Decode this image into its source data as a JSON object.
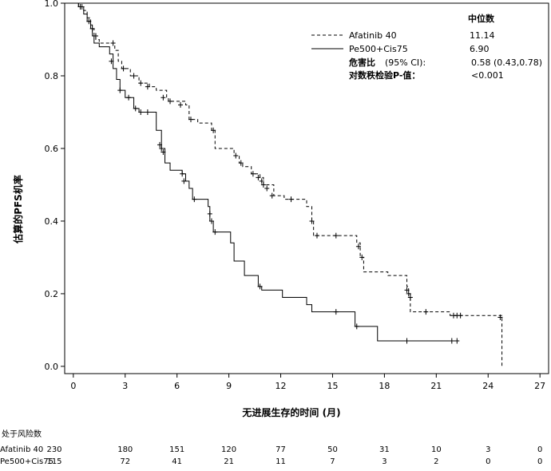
{
  "chart_data": {
    "type": "line",
    "subtype": "kaplan-meier",
    "title": "",
    "xlabel": "无进展生存的时间 (月)",
    "ylabel": "估算的PFS机率",
    "xlim": [
      -0.5,
      27.5
    ],
    "ylim": [
      -0.02,
      1.0
    ],
    "x_ticks": [
      0,
      3,
      6,
      9,
      12,
      15,
      18,
      21,
      24,
      27
    ],
    "y_ticks": [
      0.0,
      0.2,
      0.4,
      0.6,
      0.8,
      1.0
    ],
    "grid": false,
    "legend_position": "top-right",
    "legend_header": "中位数",
    "series": [
      {
        "name": "Afatinib 40",
        "dash": "dashed",
        "median": "11.14",
        "steps": [
          [
            0,
            1.0
          ],
          [
            0.3,
            0.99
          ],
          [
            0.6,
            0.98
          ],
          [
            0.8,
            0.96
          ],
          [
            1.0,
            0.94
          ],
          [
            1.1,
            0.93
          ],
          [
            1.2,
            0.91
          ],
          [
            1.3,
            0.9
          ],
          [
            1.5,
            0.89
          ],
          [
            2.4,
            0.87
          ],
          [
            2.6,
            0.84
          ],
          [
            2.8,
            0.82
          ],
          [
            3.3,
            0.8
          ],
          [
            3.8,
            0.78
          ],
          [
            4.4,
            0.77
          ],
          [
            4.8,
            0.76
          ],
          [
            5.4,
            0.74
          ],
          [
            5.5,
            0.73
          ],
          [
            6.5,
            0.72
          ],
          [
            6.7,
            0.68
          ],
          [
            7.2,
            0.67
          ],
          [
            8.0,
            0.65
          ],
          [
            8.2,
            0.6
          ],
          [
            9.3,
            0.58
          ],
          [
            9.6,
            0.56
          ],
          [
            9.8,
            0.55
          ],
          [
            10.3,
            0.53
          ],
          [
            10.8,
            0.52
          ],
          [
            11.0,
            0.5
          ],
          [
            11.6,
            0.47
          ],
          [
            12.2,
            0.46
          ],
          [
            13.5,
            0.44
          ],
          [
            13.8,
            0.4
          ],
          [
            13.9,
            0.36
          ],
          [
            16.4,
            0.34
          ],
          [
            16.6,
            0.3
          ],
          [
            16.8,
            0.26
          ],
          [
            18.2,
            0.25
          ],
          [
            19.3,
            0.22
          ],
          [
            19.4,
            0.2
          ],
          [
            19.5,
            0.15
          ],
          [
            21.8,
            0.14
          ],
          [
            24.8,
            0.0
          ]
        ],
        "censors": [
          [
            0.5,
            0.99
          ],
          [
            1.1,
            0.93
          ],
          [
            1.3,
            0.91
          ],
          [
            2.3,
            0.89
          ],
          [
            2.9,
            0.82
          ],
          [
            3.5,
            0.8
          ],
          [
            3.9,
            0.78
          ],
          [
            4.3,
            0.77
          ],
          [
            5.2,
            0.74
          ],
          [
            5.6,
            0.73
          ],
          [
            6.2,
            0.72
          ],
          [
            6.8,
            0.68
          ],
          [
            8.1,
            0.65
          ],
          [
            9.4,
            0.58
          ],
          [
            9.7,
            0.56
          ],
          [
            10.4,
            0.53
          ],
          [
            10.7,
            0.52
          ],
          [
            10.9,
            0.51
          ],
          [
            11.0,
            0.5
          ],
          [
            11.2,
            0.49
          ],
          [
            11.5,
            0.47
          ],
          [
            12.6,
            0.46
          ],
          [
            13.8,
            0.4
          ],
          [
            14.1,
            0.36
          ],
          [
            15.2,
            0.36
          ],
          [
            16.5,
            0.33
          ],
          [
            16.7,
            0.3
          ],
          [
            19.3,
            0.21
          ],
          [
            19.4,
            0.2
          ],
          [
            19.5,
            0.19
          ],
          [
            20.4,
            0.15
          ],
          [
            22.0,
            0.14
          ],
          [
            22.2,
            0.14
          ],
          [
            22.4,
            0.14
          ],
          [
            24.7,
            0.135
          ]
        ]
      },
      {
        "name": "Pe500+Cis75",
        "dash": "solid",
        "median": "6.90",
        "steps": [
          [
            0,
            1.0
          ],
          [
            0.3,
            0.99
          ],
          [
            0.6,
            0.97
          ],
          [
            0.8,
            0.95
          ],
          [
            1.0,
            0.93
          ],
          [
            1.1,
            0.91
          ],
          [
            1.2,
            0.89
          ],
          [
            1.5,
            0.88
          ],
          [
            2.1,
            0.86
          ],
          [
            2.3,
            0.82
          ],
          [
            2.5,
            0.79
          ],
          [
            2.7,
            0.76
          ],
          [
            3.0,
            0.74
          ],
          [
            3.5,
            0.71
          ],
          [
            3.8,
            0.7
          ],
          [
            4.2,
            0.7
          ],
          [
            4.8,
            0.65
          ],
          [
            5.1,
            0.6
          ],
          [
            5.3,
            0.56
          ],
          [
            5.6,
            0.54
          ],
          [
            6.3,
            0.53
          ],
          [
            6.5,
            0.51
          ],
          [
            6.7,
            0.49
          ],
          [
            6.9,
            0.46
          ],
          [
            7.8,
            0.44
          ],
          [
            7.9,
            0.4
          ],
          [
            8.1,
            0.37
          ],
          [
            9.1,
            0.34
          ],
          [
            9.3,
            0.29
          ],
          [
            9.9,
            0.25
          ],
          [
            10.7,
            0.22
          ],
          [
            10.9,
            0.21
          ],
          [
            12.1,
            0.19
          ],
          [
            13.5,
            0.17
          ],
          [
            13.8,
            0.15
          ],
          [
            16.3,
            0.11
          ],
          [
            17.6,
            0.07
          ],
          [
            22.2,
            0.07
          ]
        ],
        "censors": [
          [
            0.4,
            0.99
          ],
          [
            0.9,
            0.95
          ],
          [
            1.3,
            0.91
          ],
          [
            2.2,
            0.84
          ],
          [
            2.7,
            0.76
          ],
          [
            3.2,
            0.74
          ],
          [
            3.6,
            0.71
          ],
          [
            3.9,
            0.7
          ],
          [
            4.3,
            0.7
          ],
          [
            5.0,
            0.61
          ],
          [
            5.1,
            0.6
          ],
          [
            5.2,
            0.59
          ],
          [
            6.3,
            0.53
          ],
          [
            6.4,
            0.51
          ],
          [
            7.0,
            0.46
          ],
          [
            7.9,
            0.42
          ],
          [
            8.0,
            0.4
          ],
          [
            8.2,
            0.37
          ],
          [
            10.8,
            0.22
          ],
          [
            15.2,
            0.15
          ],
          [
            16.4,
            0.11
          ],
          [
            19.3,
            0.07
          ],
          [
            21.9,
            0.07
          ],
          [
            22.2,
            0.07
          ]
        ]
      }
    ],
    "stats": {
      "hr_label": "危害比",
      "hr_ci_label": "(95% CI):",
      "hr_value": "0.58 (0.43,0.78)",
      "pvalue_label": "对数秩检验P-值：",
      "pvalue": "<0.001"
    },
    "risk_table": {
      "title": "处于风险数",
      "rows": [
        {
          "label": "Afatinib 40",
          "values": [
            "230",
            "180",
            "151",
            "120",
            "77",
            "50",
            "31",
            "10",
            "3",
            "0"
          ]
        },
        {
          "label": "Pe500+Cis75",
          "values": [
            "115",
            "72",
            "41",
            "21",
            "11",
            "7",
            "3",
            "2",
            "0",
            "0"
          ]
        }
      ]
    }
  }
}
